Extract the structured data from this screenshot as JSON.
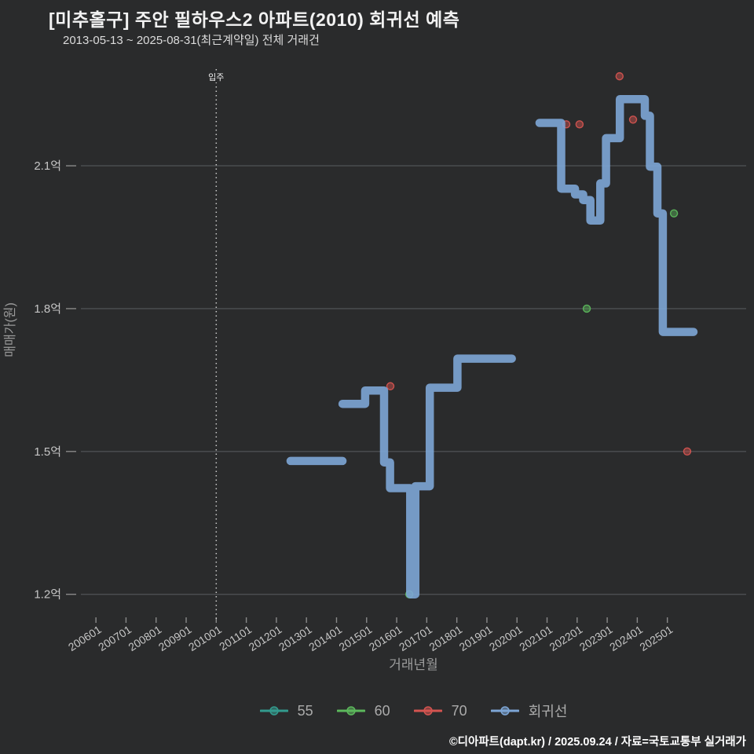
{
  "header": {
    "title": "[미추홀구] 주안 필하우스2 아파트(2010) 회귀선 예측",
    "subtitle": "2013-05-13 ~ 2025-08-31(최근계약일) 전체 거래건"
  },
  "footer": {
    "credit": "©디아파트(dapt.kr) / 2025.09.24 / 자료=국토교통부 실거래가"
  },
  "colors": {
    "background": "#2a2b2c",
    "gridline": "#4d4f52",
    "tick_mark": "#8a8a8a",
    "tick_text": "#c6c6c6",
    "axis_title": "#9b9b9b",
    "annotation": "#cccccc",
    "annotation_text": "#eeeeee"
  },
  "chart_data": {
    "type": "line",
    "title": "[미추홀구] 주안 필하우스2 아파트(2010) 회귀선 예측",
    "xlabel": "거래년월",
    "ylabel": "매매가(원)",
    "x_range": [
      2005.5,
      2027.62
    ],
    "y_range": [
      1.145,
      2.308
    ],
    "x_ticks": [
      "200601",
      "200701",
      "200801",
      "200901",
      "201001",
      "201101",
      "201201",
      "201301",
      "201401",
      "201501",
      "201601",
      "201701",
      "201801",
      "201901",
      "202001",
      "202101",
      "202201",
      "202301",
      "202401",
      "202501"
    ],
    "y_ticks": [
      {
        "v": 1.2,
        "label": "1.2억"
      },
      {
        "v": 1.5,
        "label": "1.5억"
      },
      {
        "v": 1.8,
        "label": "1.8억"
      },
      {
        "v": 2.1,
        "label": "2.1억"
      }
    ],
    "grid": true,
    "legend_position": "bottom",
    "annotation": {
      "label": "입주",
      "x": 2010.0,
      "x_label": "201001"
    },
    "unit": "억원",
    "series": [
      {
        "name": "55",
        "type": "scatter",
        "color": "#339b8e",
        "points": []
      },
      {
        "name": "60",
        "type": "scatter",
        "color": "#5cb85c",
        "points": [
          [
            2016.42,
            1.2
          ],
          [
            2022.32,
            1.8
          ],
          [
            2025.22,
            2.0
          ]
        ]
      },
      {
        "name": "70",
        "type": "scatter",
        "color": "#d45450",
        "points": [
          [
            2015.79,
            1.637
          ],
          [
            2021.64,
            2.187
          ],
          [
            2022.08,
            2.187
          ],
          [
            2023.41,
            2.288
          ],
          [
            2023.86,
            2.197
          ],
          [
            2025.66,
            1.5
          ]
        ]
      },
      {
        "name": "회귀선",
        "type": "line",
        "color": "#7da6d6",
        "stroke_width": 10.5,
        "segments": [
          [
            [
              2012.47,
              1.48
            ],
            [
              2014.2,
              1.48
            ]
          ],
          [
            [
              2014.2,
              1.6
            ],
            [
              2014.95,
              1.6
            ],
            [
              2014.95,
              1.628
            ],
            [
              2015.58,
              1.628
            ],
            [
              2015.58,
              1.477
            ],
            [
              2015.78,
              1.477
            ],
            [
              2015.78,
              1.423
            ],
            [
              2016.45,
              1.423
            ],
            [
              2016.45,
              1.2
            ],
            [
              2016.62,
              1.2
            ],
            [
              2016.62,
              1.427
            ],
            [
              2017.1,
              1.427
            ],
            [
              2017.1,
              1.634
            ],
            [
              2018.02,
              1.634
            ],
            [
              2018.02,
              1.695
            ],
            [
              2019.83,
              1.695
            ]
          ],
          [
            [
              2020.75,
              2.19
            ],
            [
              2021.47,
              2.19
            ],
            [
              2021.47,
              2.052
            ],
            [
              2021.93,
              2.052
            ],
            [
              2021.93,
              2.04
            ],
            [
              2022.2,
              2.04
            ],
            [
              2022.2,
              2.028
            ],
            [
              2022.44,
              2.028
            ],
            [
              2022.44,
              1.985
            ],
            [
              2022.77,
              1.985
            ],
            [
              2022.77,
              2.063
            ],
            [
              2022.96,
              2.063
            ],
            [
              2022.96,
              2.158
            ],
            [
              2023.42,
              2.158
            ],
            [
              2023.42,
              2.24
            ],
            [
              2024.25,
              2.24
            ],
            [
              2024.25,
              2.205
            ],
            [
              2024.42,
              2.205
            ],
            [
              2024.42,
              2.098
            ],
            [
              2024.67,
              2.098
            ],
            [
              2024.67,
              2.0
            ],
            [
              2024.85,
              2.0
            ],
            [
              2024.85,
              1.751
            ],
            [
              2025.87,
              1.751
            ]
          ]
        ]
      }
    ]
  }
}
